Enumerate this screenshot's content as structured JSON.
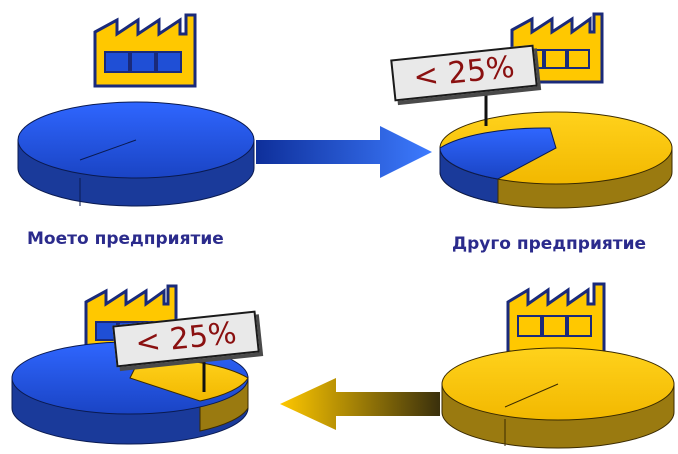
{
  "labels": {
    "my_enterprise": "Моето предприятие",
    "other_enterprise": "Друго предприятие"
  },
  "signs": {
    "top": "< 25%",
    "bottom": "< 25%"
  },
  "shares": {
    "top_right_blue_fraction": 0.25,
    "bottom_left_yellow_fraction": 0.25
  },
  "colors": {
    "blue": "#1f4fd6",
    "blue_side": "#1a3a9a",
    "yellow": "#ffc800",
    "yellow_side": "#9a7a10",
    "label_text": "#2b2b8c",
    "sign_text": "#8a1010"
  },
  "icons": [
    "factory-icon",
    "pie-icon",
    "arrow-right-icon",
    "arrow-left-icon",
    "sign-icon"
  ]
}
